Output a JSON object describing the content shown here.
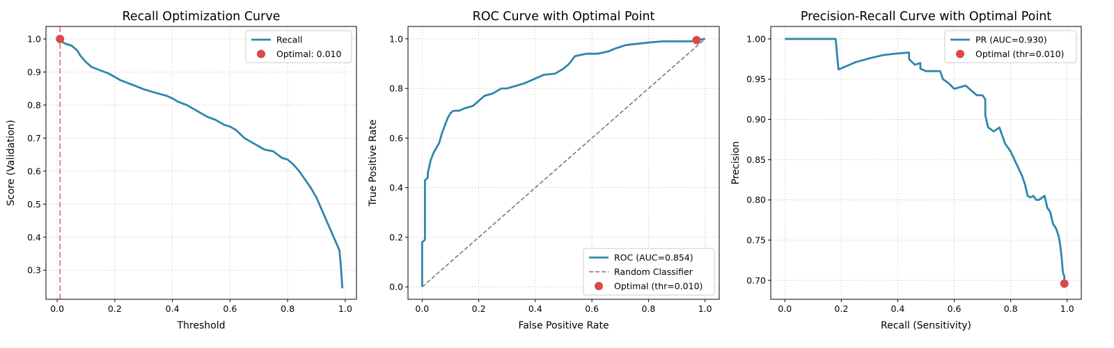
{
  "chart_data": [
    {
      "type": "line",
      "title": "Recall Optimization Curve",
      "xlabel": "Threshold",
      "ylabel": "Score (Validation)",
      "xlim": [
        -0.039,
        1.039
      ],
      "ylim": [
        0.212,
        1.038
      ],
      "xticks": [
        0.0,
        0.2,
        0.4,
        0.6,
        0.8,
        1.0
      ],
      "xtick_labels": [
        "0.0",
        "0.2",
        "0.4",
        "0.6",
        "0.8",
        "1.0"
      ],
      "yticks": [
        0.3,
        0.4,
        0.5,
        0.6,
        0.7,
        0.8,
        0.9,
        1.0
      ],
      "ytick_labels": [
        "0.3",
        "0.4",
        "0.5",
        "0.6",
        "0.7",
        "0.8",
        "0.9",
        "1.0"
      ],
      "grid": true,
      "legend_position": "top-right",
      "series": [
        {
          "name": "Recall",
          "color": "#2e86ab",
          "x": [
            0.01,
            0.02,
            0.03,
            0.05,
            0.07,
            0.08,
            0.1,
            0.12,
            0.15,
            0.18,
            0.2,
            0.22,
            0.25,
            0.28,
            0.3,
            0.33,
            0.35,
            0.38,
            0.4,
            0.42,
            0.45,
            0.48,
            0.5,
            0.52,
            0.55,
            0.58,
            0.6,
            0.62,
            0.65,
            0.68,
            0.7,
            0.72,
            0.75,
            0.78,
            0.8,
            0.82,
            0.84,
            0.86,
            0.88,
            0.89,
            0.9,
            0.91,
            0.92,
            0.93,
            0.94,
            0.95,
            0.96,
            0.97,
            0.98,
            0.985,
            0.99
          ],
          "y": [
            1.0,
            0.99,
            0.985,
            0.98,
            0.965,
            0.95,
            0.93,
            0.915,
            0.905,
            0.895,
            0.885,
            0.875,
            0.865,
            0.855,
            0.848,
            0.84,
            0.835,
            0.828,
            0.82,
            0.81,
            0.8,
            0.785,
            0.775,
            0.765,
            0.755,
            0.74,
            0.735,
            0.725,
            0.7,
            0.685,
            0.675,
            0.665,
            0.66,
            0.64,
            0.635,
            0.62,
            0.6,
            0.575,
            0.55,
            0.535,
            0.52,
            0.5,
            0.48,
            0.46,
            0.44,
            0.42,
            0.4,
            0.38,
            0.36,
            0.31,
            0.245
          ]
        }
      ],
      "optimal_point": {
        "name": "Optimal: 0.010",
        "x": 0.01,
        "y": 1.0,
        "color": "#d94a4a"
      },
      "vline": {
        "x": 0.01,
        "color": "#e67e7e"
      }
    },
    {
      "type": "line",
      "title": "ROC Curve with Optimal Point",
      "xlabel": "False Positive Rate",
      "ylabel": "True Positive Rate",
      "xlim": [
        -0.05,
        1.05
      ],
      "ylim": [
        -0.05,
        1.05
      ],
      "xticks": [
        0.0,
        0.2,
        0.4,
        0.6,
        0.8,
        1.0
      ],
      "xtick_labels": [
        "0.0",
        "0.2",
        "0.4",
        "0.6",
        "0.8",
        "1.0"
      ],
      "yticks": [
        0.0,
        0.2,
        0.4,
        0.6,
        0.8,
        1.0
      ],
      "ytick_labels": [
        "0.0",
        "0.2",
        "0.4",
        "0.6",
        "0.8",
        "1.0"
      ],
      "grid": true,
      "legend_position": "bottom-right",
      "series": [
        {
          "name": "ROC (AUC=0.854)",
          "color": "#2e86ab",
          "x": [
            0.0,
            0.0,
            0.01,
            0.01,
            0.02,
            0.02,
            0.03,
            0.04,
            0.05,
            0.06,
            0.07,
            0.08,
            0.09,
            0.1,
            0.11,
            0.13,
            0.15,
            0.18,
            0.2,
            0.22,
            0.25,
            0.28,
            0.3,
            0.33,
            0.36,
            0.4,
            0.43,
            0.47,
            0.5,
            0.52,
            0.54,
            0.58,
            0.62,
            0.66,
            0.68,
            0.72,
            0.76,
            0.8,
            0.85,
            0.9,
            0.95,
            0.97,
            1.0
          ],
          "y": [
            0.0,
            0.18,
            0.19,
            0.43,
            0.44,
            0.46,
            0.51,
            0.54,
            0.56,
            0.58,
            0.62,
            0.65,
            0.68,
            0.7,
            0.71,
            0.71,
            0.72,
            0.73,
            0.75,
            0.77,
            0.78,
            0.8,
            0.8,
            0.81,
            0.82,
            0.84,
            0.855,
            0.86,
            0.88,
            0.9,
            0.93,
            0.94,
            0.94,
            0.95,
            0.96,
            0.975,
            0.98,
            0.985,
            0.99,
            0.99,
            0.99,
            0.995,
            1.0
          ]
        },
        {
          "name": "Random Classifier",
          "color": "#777777",
          "dashed": true,
          "x": [
            0.0,
            1.0
          ],
          "y": [
            0.0,
            1.0
          ]
        }
      ],
      "optimal_point": {
        "name": "Optimal (thr=0.010)",
        "x": 0.97,
        "y": 0.995,
        "color": "#d94a4a"
      }
    },
    {
      "type": "line",
      "title": "Precision-Recall Curve with Optimal Point",
      "xlabel": "Recall (Sensitivity)",
      "ylabel": "Precision",
      "xlim": [
        -0.05,
        1.05
      ],
      "ylim": [
        0.6765,
        1.0155
      ],
      "xticks": [
        0.0,
        0.2,
        0.4,
        0.6,
        0.8,
        1.0
      ],
      "xtick_labels": [
        "0.0",
        "0.2",
        "0.4",
        "0.6",
        "0.8",
        "1.0"
      ],
      "yticks": [
        0.7,
        0.75,
        0.8,
        0.85,
        0.9,
        0.95,
        1.0
      ],
      "ytick_labels": [
        "0.70",
        "0.75",
        "0.80",
        "0.85",
        "0.90",
        "0.95",
        "1.00"
      ],
      "grid": true,
      "legend_position": "top-right",
      "series": [
        {
          "name": "PR (AUC=0.930)",
          "color": "#2e86ab",
          "x": [
            0.0,
            0.18,
            0.185,
            0.19,
            0.25,
            0.3,
            0.35,
            0.4,
            0.44,
            0.44,
            0.46,
            0.48,
            0.48,
            0.5,
            0.52,
            0.55,
            0.56,
            0.58,
            0.6,
            0.64,
            0.68,
            0.7,
            0.71,
            0.71,
            0.72,
            0.74,
            0.76,
            0.78,
            0.8,
            0.82,
            0.84,
            0.85,
            0.86,
            0.87,
            0.88,
            0.89,
            0.9,
            0.92,
            0.93,
            0.94,
            0.95,
            0.96,
            0.97,
            0.975,
            0.98,
            0.985,
            0.99,
            0.99
          ],
          "y": [
            1.0,
            1.0,
            0.98,
            0.962,
            0.971,
            0.976,
            0.98,
            0.982,
            0.983,
            0.975,
            0.968,
            0.97,
            0.963,
            0.96,
            0.96,
            0.96,
            0.95,
            0.945,
            0.938,
            0.942,
            0.93,
            0.93,
            0.925,
            0.905,
            0.89,
            0.885,
            0.89,
            0.87,
            0.86,
            0.845,
            0.83,
            0.82,
            0.805,
            0.803,
            0.805,
            0.8,
            0.8,
            0.805,
            0.79,
            0.785,
            0.77,
            0.765,
            0.755,
            0.745,
            0.73,
            0.71,
            0.705,
            0.697
          ]
        }
      ],
      "optimal_point": {
        "name": "Optimal (thr=0.010)",
        "x": 0.99,
        "y": 0.696,
        "color": "#d94a4a"
      }
    }
  ]
}
